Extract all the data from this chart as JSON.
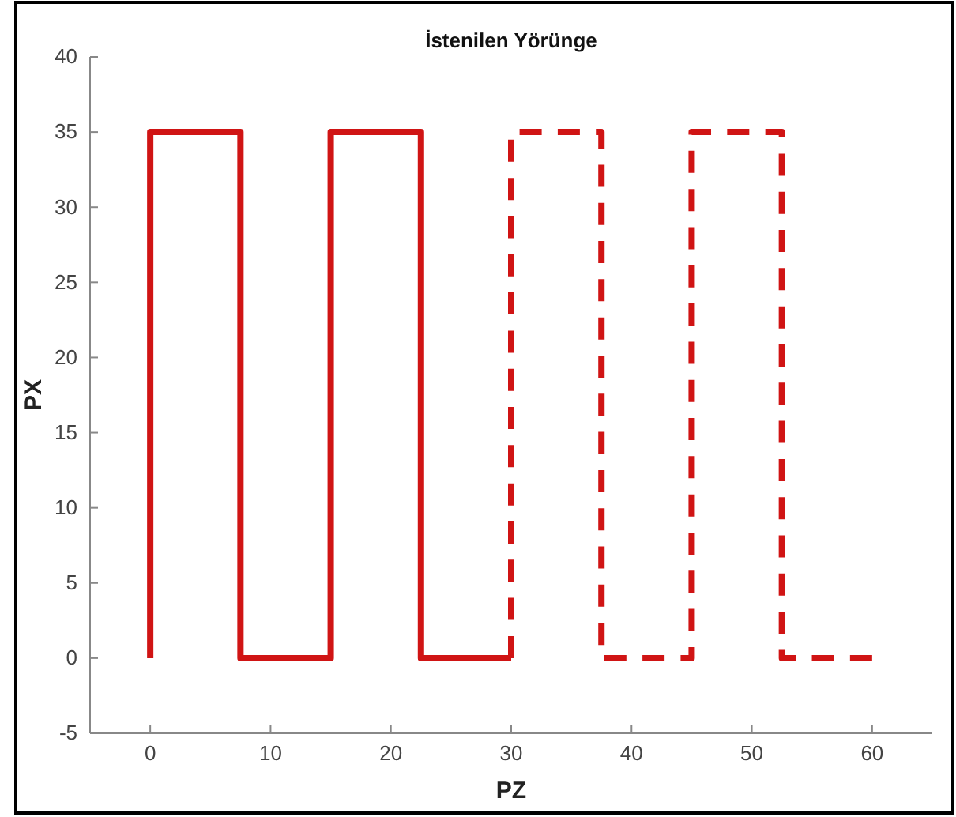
{
  "chart_data": {
    "type": "line",
    "title": "İstenilen Yörünge",
    "xlabel": "PZ",
    "ylabel": "PX",
    "xlim": [
      -5,
      65
    ],
    "ylim": [
      -5,
      40
    ],
    "xticks": [
      0,
      10,
      20,
      30,
      40,
      50,
      60
    ],
    "yticks": [
      -5,
      0,
      5,
      10,
      15,
      20,
      25,
      30,
      35,
      40
    ],
    "grid": false,
    "series": [
      {
        "color": "#d01414",
        "line_style": "solid",
        "x": [
          0,
          0,
          7.5,
          7.5,
          15,
          15,
          22.5,
          22.5,
          30
        ],
        "values": [
          0,
          35,
          35,
          0,
          0,
          35,
          35,
          0,
          0
        ]
      },
      {
        "color": "#d01414",
        "line_style": "dashed",
        "x": [
          30,
          30,
          37.5,
          37.5,
          45,
          45,
          52.5,
          52.5,
          60
        ],
        "values": [
          0,
          35,
          35,
          0,
          0,
          35,
          35,
          0,
          0
        ]
      }
    ]
  }
}
